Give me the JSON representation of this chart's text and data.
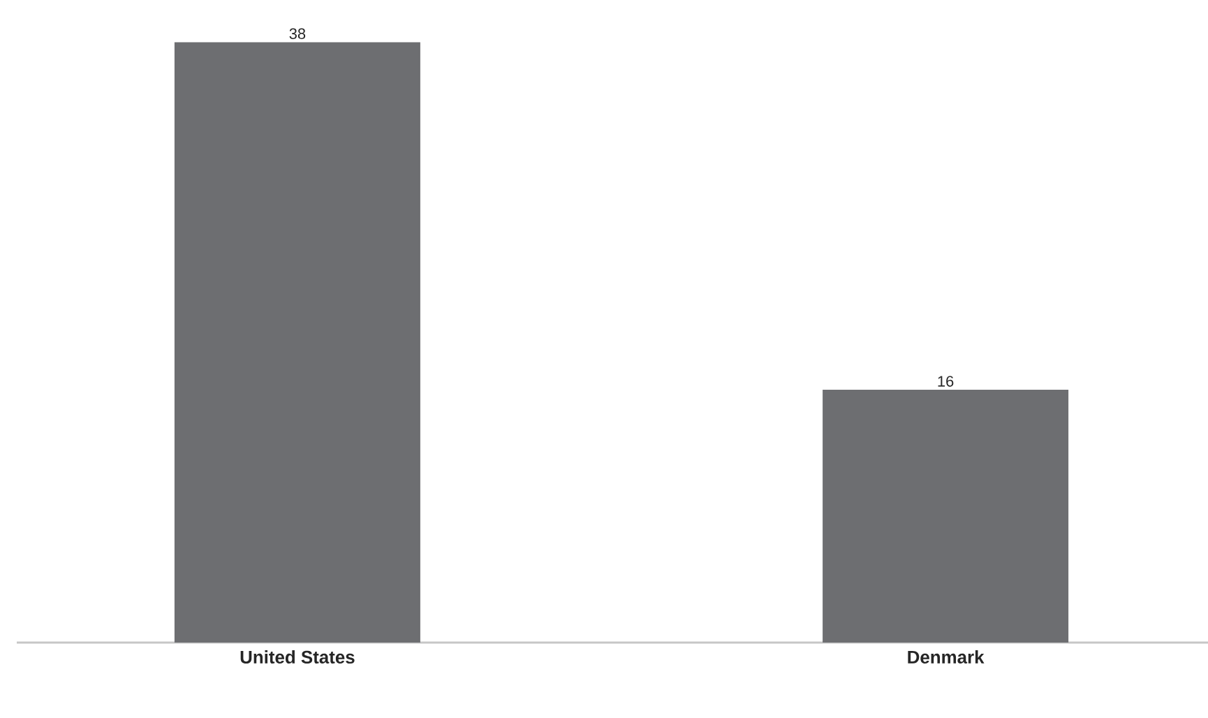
{
  "chart_data": {
    "type": "bar",
    "categories": [
      "United States",
      "Denmark"
    ],
    "values": [
      38,
      16
    ],
    "color": "#6d6e71",
    "data_labels": true
  }
}
